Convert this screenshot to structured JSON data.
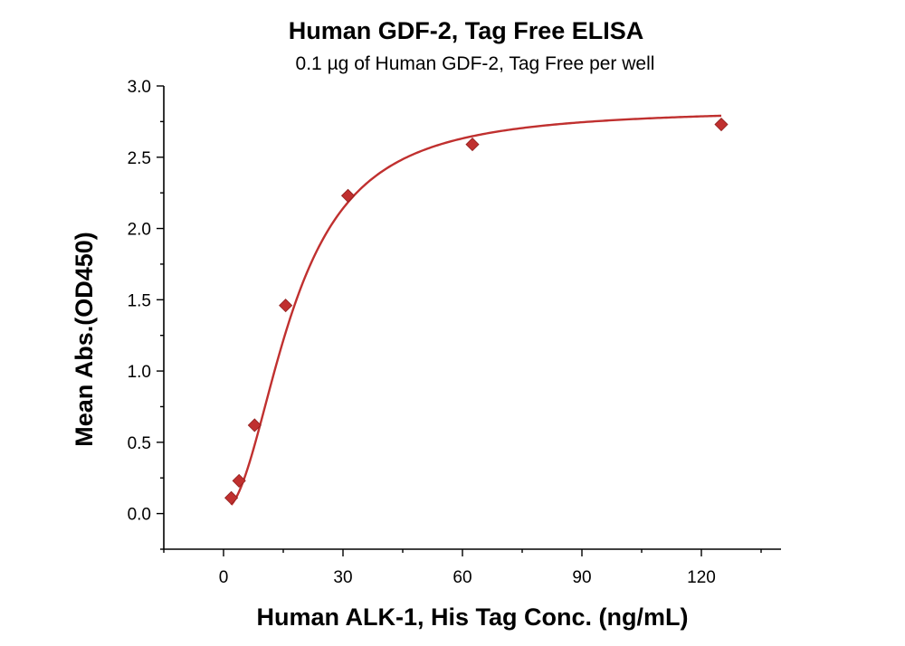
{
  "chart_data": {
    "type": "scatter",
    "title": "Human GDF-2, Tag Free ELISA",
    "subtitle": "0.1 µg of Human GDF-2, Tag Free per well",
    "xlabel": "Human ALK-1, His Tag Conc. (ng/mL)",
    "ylabel": "Mean Abs.(OD450)",
    "xlim": [
      -15,
      140
    ],
    "ylim": [
      -0.25,
      3.0
    ],
    "xticks": [
      0,
      30,
      60,
      90,
      120
    ],
    "xtick_labels": [
      "0",
      "30",
      "60",
      "90",
      "120"
    ],
    "yticks": [
      0.0,
      0.5,
      1.0,
      1.5,
      2.0,
      2.5,
      3.0
    ],
    "ytick_labels": [
      "0.0",
      "0.5",
      "1.0",
      "1.5",
      "2.0",
      "2.5",
      "3.0"
    ],
    "grid": false,
    "marker": "diamond",
    "color": "#c0302f",
    "series": [
      {
        "x": [
          1.95,
          3.9,
          7.8,
          15.6,
          31.25,
          62.5,
          125
        ],
        "y": [
          0.11,
          0.23,
          0.62,
          1.46,
          2.23,
          2.59,
          2.73
        ]
      }
    ],
    "fit": {
      "model": "4PL",
      "bottom": 0.03,
      "top": 2.84,
      "ec50": 17.5,
      "hill": 2.05
    }
  }
}
